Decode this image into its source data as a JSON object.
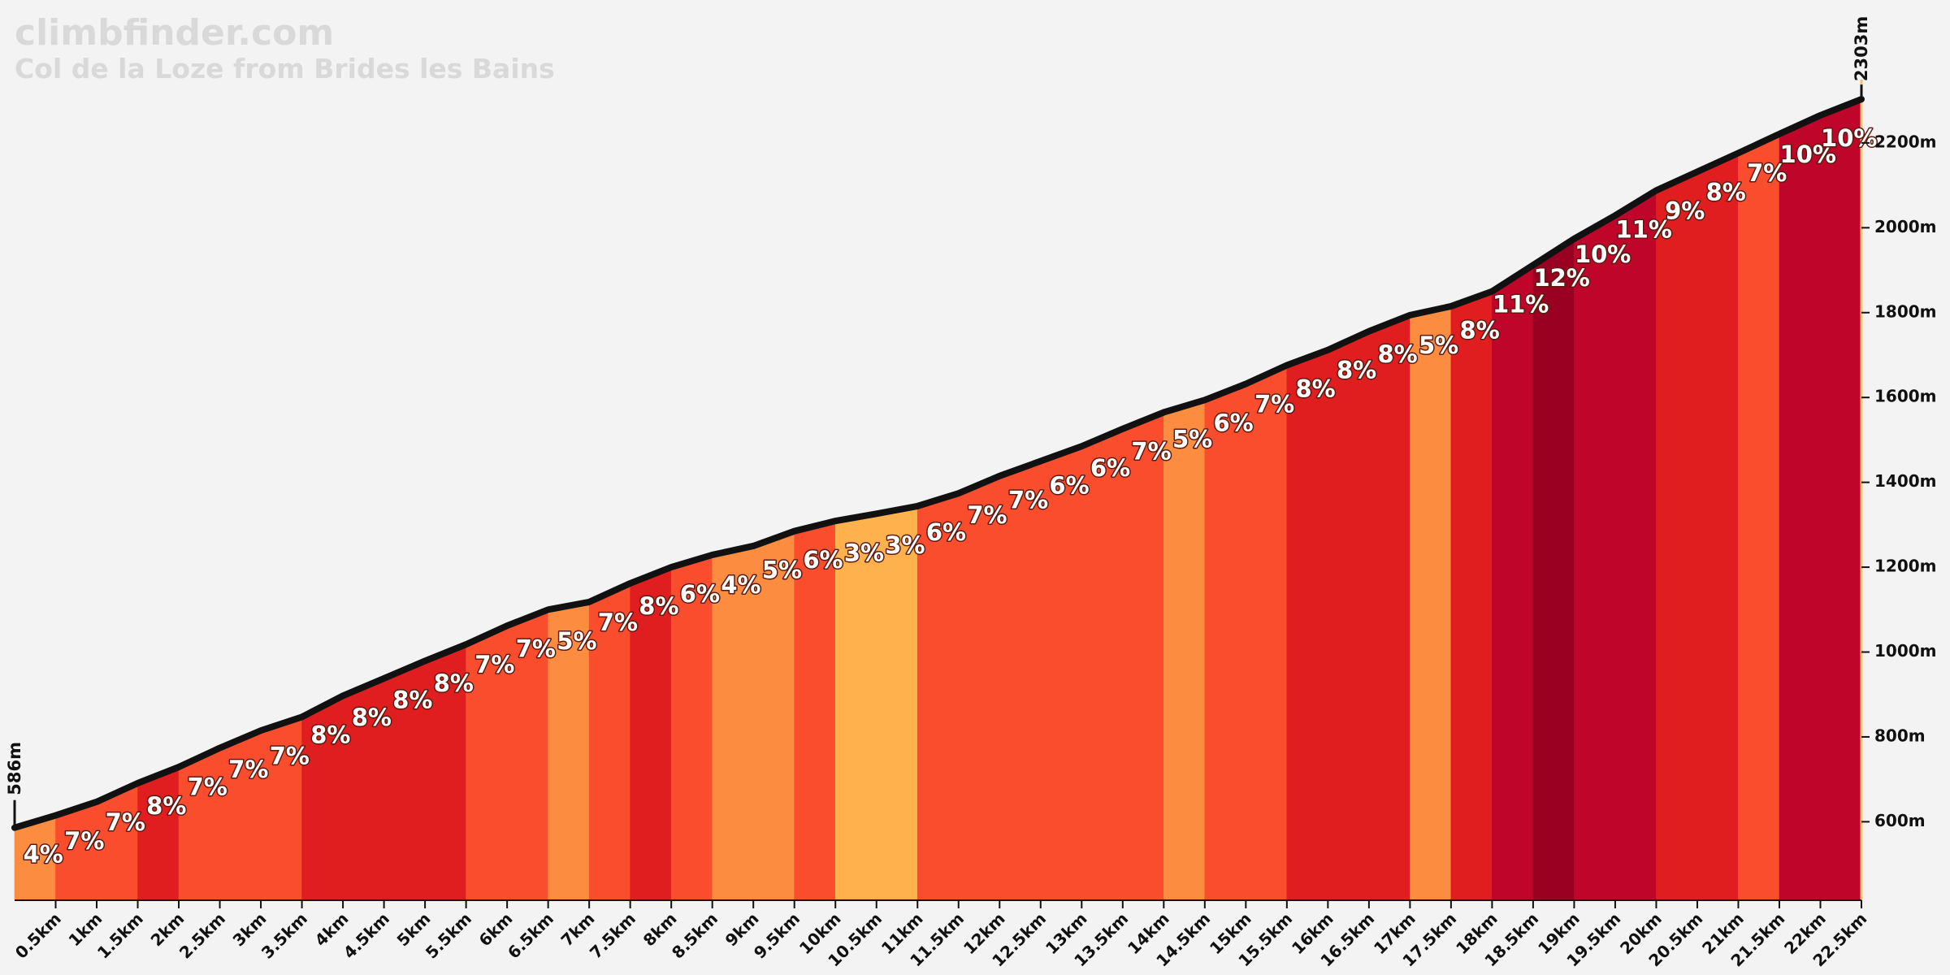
{
  "chart_data": {
    "type": "area",
    "title": "climbfinder.com",
    "subtitle": "Col de la Loze from Brides les Bains",
    "x": [
      0,
      0.5,
      1,
      1.5,
      2,
      2.5,
      3,
      3.5,
      4,
      4.5,
      5,
      5.5,
      6,
      6.5,
      7,
      7.5,
      8,
      8.5,
      9,
      9.5,
      10,
      10.5,
      11,
      11.5,
      12,
      12.5,
      13,
      13.5,
      14,
      14.5,
      15,
      15.5,
      16,
      16.5,
      17,
      17.5,
      18,
      18.5,
      19,
      19.5,
      20,
      20.5,
      21,
      21.5,
      22,
      22.5
    ],
    "values": [
      586,
      615,
      647,
      691,
      729,
      774,
      815,
      847,
      897,
      938,
      979,
      1018,
      1062,
      1100,
      1118,
      1162,
      1200,
      1229,
      1250,
      1285,
      1309,
      1326,
      1344,
      1374,
      1415,
      1450,
      1485,
      1526,
      1565,
      1594,
      1632,
      1676,
      1712,
      1756,
      1794,
      1815,
      1850,
      1912,
      1974,
      2029,
      2088,
      2132,
      2176,
      2221,
      2265,
      2303
    ],
    "start_label": "586m",
    "end_label": "2303m",
    "line_color": "#111111",
    "segments": {
      "values": [
        4,
        7,
        7,
        8,
        7,
        7,
        7,
        8,
        8,
        8,
        8,
        7,
        7,
        5,
        7,
        8,
        6,
        4,
        5,
        6,
        3,
        3,
        6,
        7,
        7,
        6,
        6,
        7,
        5,
        6,
        7,
        8,
        8,
        8,
        5,
        8,
        11,
        12,
        10,
        11,
        9,
        8,
        7,
        10,
        10
      ],
      "value_labels": [
        "4%",
        "7%",
        "7%",
        "8%",
        "7%",
        "7%",
        "7%",
        "8%",
        "8%",
        "8%",
        "8%",
        "7%",
        "7%",
        "5%",
        "7%",
        "8%",
        "6%",
        "4%",
        "5%",
        "6%",
        "3%",
        "3%",
        "6%",
        "7%",
        "7%",
        "6%",
        "6%",
        "7%",
        "5%",
        "6%",
        "7%",
        "8%",
        "8%",
        "8%",
        "5%",
        "8%",
        "11%",
        "12%",
        "10%",
        "11%",
        "9%",
        "8%",
        "7%",
        "10%",
        "10%"
      ],
      "colors": [
        "#fb8c40",
        "#fa4d2e",
        "#fa4d2e",
        "#e01e1f",
        "#fa4d2e",
        "#fa4d2e",
        "#fa4d2e",
        "#e01e1f",
        "#e01e1f",
        "#e01e1f",
        "#e01e1f",
        "#fa4d2e",
        "#fa4d2e",
        "#fb8c40",
        "#fa4d2e",
        "#e01e1f",
        "#fa4d2e",
        "#fb8c40",
        "#fb8c40",
        "#fa4d2e",
        "#ffb14e",
        "#ffb14e",
        "#fa4d2e",
        "#fa4d2e",
        "#fa4d2e",
        "#fa4d2e",
        "#fa4d2e",
        "#fa4d2e",
        "#fb8c40",
        "#fa4d2e",
        "#fa4d2e",
        "#e01e1f",
        "#e01e1f",
        "#e01e1f",
        "#fb8c40",
        "#e01e1f",
        "#c0052a",
        "#9a0021",
        "#c0052a",
        "#c0052a",
        "#e01e1f",
        "#e01e1f",
        "#fa4d2e",
        "#c0052a",
        "#c0052a"
      ]
    },
    "xlim": [
      0,
      22.5
    ],
    "xticks": [
      {
        "value": 0.5,
        "label": "0.5km"
      },
      {
        "value": 1,
        "label": "1km"
      },
      {
        "value": 1.5,
        "label": "1.5km"
      },
      {
        "value": 2,
        "label": "2km"
      },
      {
        "value": 2.5,
        "label": "2.5km"
      },
      {
        "value": 3,
        "label": "3km"
      },
      {
        "value": 3.5,
        "label": "3.5km"
      },
      {
        "value": 4,
        "label": "4km"
      },
      {
        "value": 4.5,
        "label": "4.5km"
      },
      {
        "value": 5,
        "label": "5km"
      },
      {
        "value": 5.5,
        "label": "5.5km"
      },
      {
        "value": 6,
        "label": "6km"
      },
      {
        "value": 6.5,
        "label": "6.5km"
      },
      {
        "value": 7,
        "label": "7km"
      },
      {
        "value": 7.5,
        "label": "7.5km"
      },
      {
        "value": 8,
        "label": "8km"
      },
      {
        "value": 8.5,
        "label": "8.5km"
      },
      {
        "value": 9,
        "label": "9km"
      },
      {
        "value": 9.5,
        "label": "9.5km"
      },
      {
        "value": 10,
        "label": "10km"
      },
      {
        "value": 10.5,
        "label": "10.5km"
      },
      {
        "value": 11,
        "label": "11km"
      },
      {
        "value": 11.5,
        "label": "11.5km"
      },
      {
        "value": 12,
        "label": "12km"
      },
      {
        "value": 12.5,
        "label": "12.5km"
      },
      {
        "value": 13,
        "label": "13km"
      },
      {
        "value": 13.5,
        "label": "13.5km"
      },
      {
        "value": 14,
        "label": "14km"
      },
      {
        "value": 14.5,
        "label": "14.5km"
      },
      {
        "value": 15,
        "label": "15km"
      },
      {
        "value": 15.5,
        "label": "15.5km"
      },
      {
        "value": 16,
        "label": "16km"
      },
      {
        "value": 16.5,
        "label": "16.5km"
      },
      {
        "value": 17,
        "label": "17km"
      },
      {
        "value": 17.5,
        "label": "17.5km"
      },
      {
        "value": 18,
        "label": "18km"
      },
      {
        "value": 18.5,
        "label": "18.5km"
      },
      {
        "value": 19,
        "label": "19km"
      },
      {
        "value": 19.5,
        "label": "19.5km"
      },
      {
        "value": 20,
        "label": "20km"
      },
      {
        "value": 20.5,
        "label": "20.5km"
      },
      {
        "value": 21,
        "label": "21km"
      },
      {
        "value": 21.5,
        "label": "21.5km"
      },
      {
        "value": 22,
        "label": "22km"
      },
      {
        "value": 22.5,
        "label": "22.5km"
      }
    ],
    "ylim": [
      415,
      2330
    ],
    "yticks": [
      {
        "value": 600,
        "label": "600m"
      },
      {
        "value": 800,
        "label": "800m"
      },
      {
        "value": 1000,
        "label": "1000m"
      },
      {
        "value": 1200,
        "label": "1200m"
      },
      {
        "value": 1400,
        "label": "1400m"
      },
      {
        "value": 1600,
        "label": "1600m"
      },
      {
        "value": 1800,
        "label": "1800m"
      },
      {
        "value": 2000,
        "label": "2000m"
      },
      {
        "value": 2200,
        "label": "2200m"
      }
    ]
  }
}
